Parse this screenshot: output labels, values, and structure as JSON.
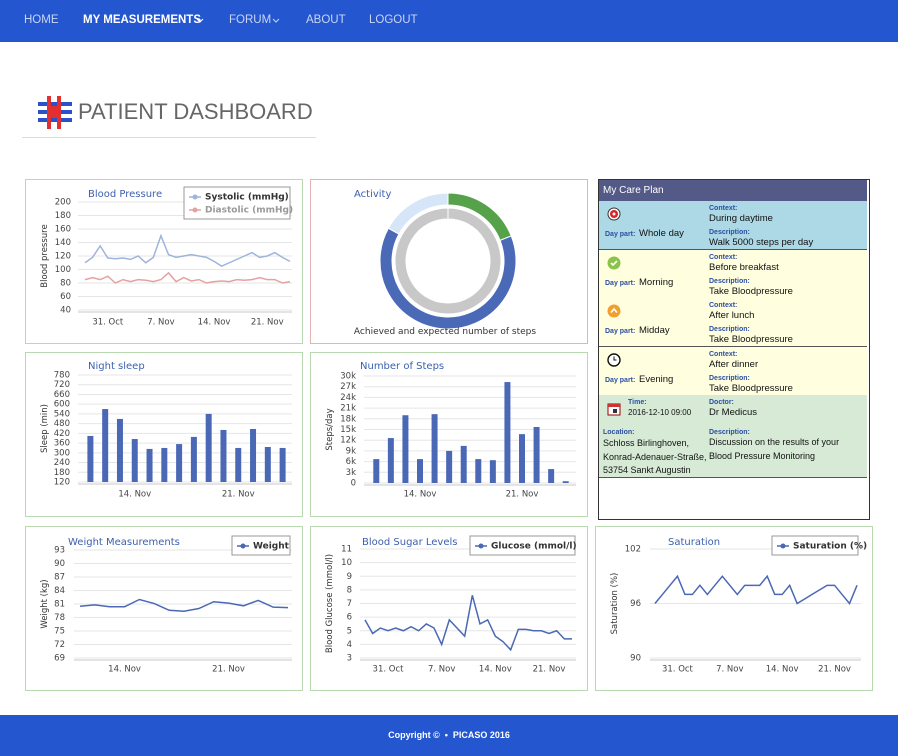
{
  "nav": {
    "items": [
      "HOME",
      "MY MEASUREMENTS",
      "FORUM",
      "ABOUT",
      "LOGOUT"
    ]
  },
  "header": {
    "title": "PATIENT DASHBOARD"
  },
  "care_plan": {
    "title": "My Care Plan",
    "rows": [
      {
        "day_part_label": "Day part:",
        "day_part": "Whole day",
        "context_label": "Context:",
        "context": "During daytime",
        "description_label": "Description:",
        "description": "Walk 5000 steps per day"
      },
      {
        "day_part_label": "Day part:",
        "day_part": "Morning",
        "context_label": "Context:",
        "context": "Before breakfast",
        "description_label": "Description:",
        "description": "Take Bloodpressure"
      },
      {
        "day_part_label": "Day part:",
        "day_part": "Midday",
        "context_label": "Context:",
        "context": "After lunch",
        "description_label": "Description:",
        "description": "Take Bloodpressure"
      },
      {
        "day_part_label": "Day part:",
        "day_part": "Evening",
        "context_label": "Context:",
        "context": "After dinner",
        "description_label": "Description:",
        "description": "Take Bloodpressure"
      }
    ],
    "appointment": {
      "time_label": "Time:",
      "time": "2016-12-10 09:00",
      "doctor_label": "Doctor:",
      "doctor": "Dr Medicus",
      "location_label": "Location:",
      "location": [
        "Schloss Birlinghoven,",
        "Konrad-Adenauer-Straße,",
        "53754 Sankt Augustin"
      ],
      "description_label": "Description:",
      "description": [
        "Discussion on the results of your",
        "Blood Pressure Monitoring"
      ]
    }
  },
  "chart_data": [
    {
      "type": "line",
      "title": "Blood Pressure",
      "ylabel": "Blood pressure",
      "categories": [
        null,
        null,
        null,
        "31. Oct",
        null,
        null,
        null,
        null,
        null,
        null,
        "7. Nov",
        null,
        null,
        null,
        null,
        null,
        null,
        "14. Nov",
        null,
        null,
        null,
        null,
        null,
        null,
        "21. Nov",
        null,
        null,
        null
      ],
      "series": [
        {
          "name": "Systolic (mmHg)",
          "color": "#9fb3dc",
          "values": [
            110,
            118,
            135,
            117,
            116,
            117,
            115,
            120,
            110,
            118,
            150,
            122,
            118,
            120,
            122,
            120,
            118,
            112,
            105,
            110,
            115,
            120,
            125,
            118,
            120,
            125,
            118,
            112
          ]
        },
        {
          "name": "Diastolic (mmHg)",
          "color": "#e3a2a2",
          "values": [
            85,
            88,
            85,
            90,
            80,
            85,
            82,
            85,
            84,
            82,
            85,
            95,
            82,
            88,
            83,
            85,
            80,
            82,
            83,
            82,
            85,
            84,
            85,
            88,
            85,
            85,
            80,
            82
          ]
        }
      ],
      "ylim": [
        40,
        200
      ],
      "yticks": [
        40,
        60,
        80,
        100,
        120,
        140,
        160,
        180,
        200
      ],
      "grid": true,
      "legend": "top-right"
    },
    {
      "type": "donut",
      "title": "Activity",
      "caption": "Achieved and expected number of steps",
      "rings": [
        {
          "values": [
            19,
            64,
            17
          ],
          "colors": [
            "#55a24a",
            "#4a6ab8",
            "#d6e6f8"
          ]
        },
        {
          "values": [
            100
          ],
          "colors": [
            "#c8c8c8"
          ]
        }
      ]
    },
    {
      "type": "bar",
      "title": "Night sleep",
      "ylabel": "Sleep (min)",
      "categories": [
        null,
        null,
        null,
        "14. Nov",
        null,
        null,
        null,
        null,
        null,
        null,
        "21. Nov",
        null,
        null,
        null
      ],
      "values": [
        404,
        570,
        509,
        385,
        324,
        330,
        354,
        398,
        540,
        441,
        330,
        447,
        336,
        330
      ],
      "color": "#4a68b5",
      "ylim": [
        120,
        780
      ],
      "yticks": [
        120,
        180,
        240,
        300,
        360,
        420,
        480,
        540,
        600,
        660,
        720,
        780
      ],
      "grid": true
    },
    {
      "type": "bar",
      "title": "Number of Steps",
      "ylabel": "Steps/day",
      "categories": [
        null,
        null,
        null,
        "14. Nov",
        null,
        null,
        null,
        null,
        null,
        null,
        "21. Nov",
        null,
        null,
        null
      ],
      "values": [
        6700,
        12600,
        19000,
        6700,
        19300,
        9000,
        10400,
        6700,
        6400,
        28300,
        13700,
        15700,
        3900,
        500
      ],
      "color": "#4a68b5",
      "ylim": [
        0,
        30000
      ],
      "yticks": [
        0,
        {
          "value": 3000,
          "label": "3k"
        },
        {
          "value": 6000,
          "label": "6k"
        },
        {
          "value": 9000,
          "label": "9k"
        },
        {
          "value": 12000,
          "label": "12k"
        },
        {
          "value": 15000,
          "label": "15k"
        },
        {
          "value": 18000,
          "label": "18k"
        },
        {
          "value": 21000,
          "label": "21k"
        },
        {
          "value": 24000,
          "label": "24k"
        },
        {
          "value": 27000,
          "label": "27k"
        },
        {
          "value": 30000,
          "label": "30k"
        }
      ],
      "grid": true
    },
    {
      "type": "line",
      "title": "Weight Measurements",
      "ylabel": "Weight (kg)",
      "categories": [
        null,
        null,
        null,
        "14. Nov",
        null,
        null,
        null,
        null,
        null,
        null,
        "21. Nov",
        null,
        null,
        null,
        null
      ],
      "series": [
        {
          "name": "Weight",
          "color": "#4a68b5",
          "values": [
            80.5,
            80.8,
            80.4,
            80.4,
            82,
            81.1,
            79.6,
            79.4,
            80,
            81.5,
            81.2,
            80.6,
            81.8,
            80.3,
            80.2
          ]
        }
      ],
      "ylim": [
        69,
        93
      ],
      "yticks": [
        69,
        72,
        75,
        78,
        81,
        84,
        87,
        90,
        93
      ],
      "grid": true,
      "legend": "top-right"
    },
    {
      "type": "line",
      "title": "Blood Sugar Levels",
      "ylabel": "Blood Glucose (mmol/l)",
      "categories": [
        null,
        null,
        null,
        "31. Oct",
        null,
        null,
        null,
        null,
        null,
        null,
        "7. Nov",
        null,
        null,
        null,
        null,
        null,
        null,
        "14. Nov",
        null,
        null,
        null,
        null,
        null,
        null,
        "21. Nov",
        null,
        null,
        null
      ],
      "series": [
        {
          "name": "Glucose (mmol/l)",
          "color": "#4a68b5",
          "values": [
            5.8,
            4.8,
            5.2,
            5.0,
            5.2,
            5.0,
            5.3,
            5.0,
            5.5,
            5.2,
            4.0,
            5.8,
            5.2,
            4.6,
            7.6,
            5.5,
            5.8,
            4.6,
            4.2,
            3.6,
            5.1,
            5.1,
            5.0,
            5.0,
            4.8,
            5.0,
            4.4,
            4.4
          ]
        }
      ],
      "ylim": [
        3,
        11
      ],
      "yticks": [
        3,
        4,
        5,
        6,
        7,
        8,
        9,
        10,
        11
      ],
      "grid": true,
      "legend": "top-right"
    },
    {
      "type": "line",
      "title": "Saturation",
      "ylabel": "Saturation (%)",
      "categories": [
        null,
        null,
        null,
        "31. Oct",
        null,
        null,
        null,
        null,
        null,
        null,
        "7. Nov",
        null,
        null,
        null,
        null,
        null,
        null,
        "14. Nov",
        null,
        null,
        null,
        null,
        null,
        null,
        "21. Nov",
        null,
        null,
        null
      ],
      "series": [
        {
          "name": "Saturation (%)",
          "color": "#4a68b5",
          "values": [
            96,
            97,
            98,
            99,
            97,
            97,
            98,
            97,
            98,
            99,
            98,
            97,
            98,
            98,
            98,
            99,
            97,
            97,
            98,
            96,
            96.5,
            97,
            97.5,
            98,
            98,
            97,
            96,
            98
          ]
        }
      ],
      "ylim": [
        90,
        102
      ],
      "yticks": [
        90,
        96,
        102
      ],
      "grid": true,
      "legend": "top-right"
    }
  ],
  "footer": {
    "text": "Copyright ©  •  PICASO 2016"
  }
}
